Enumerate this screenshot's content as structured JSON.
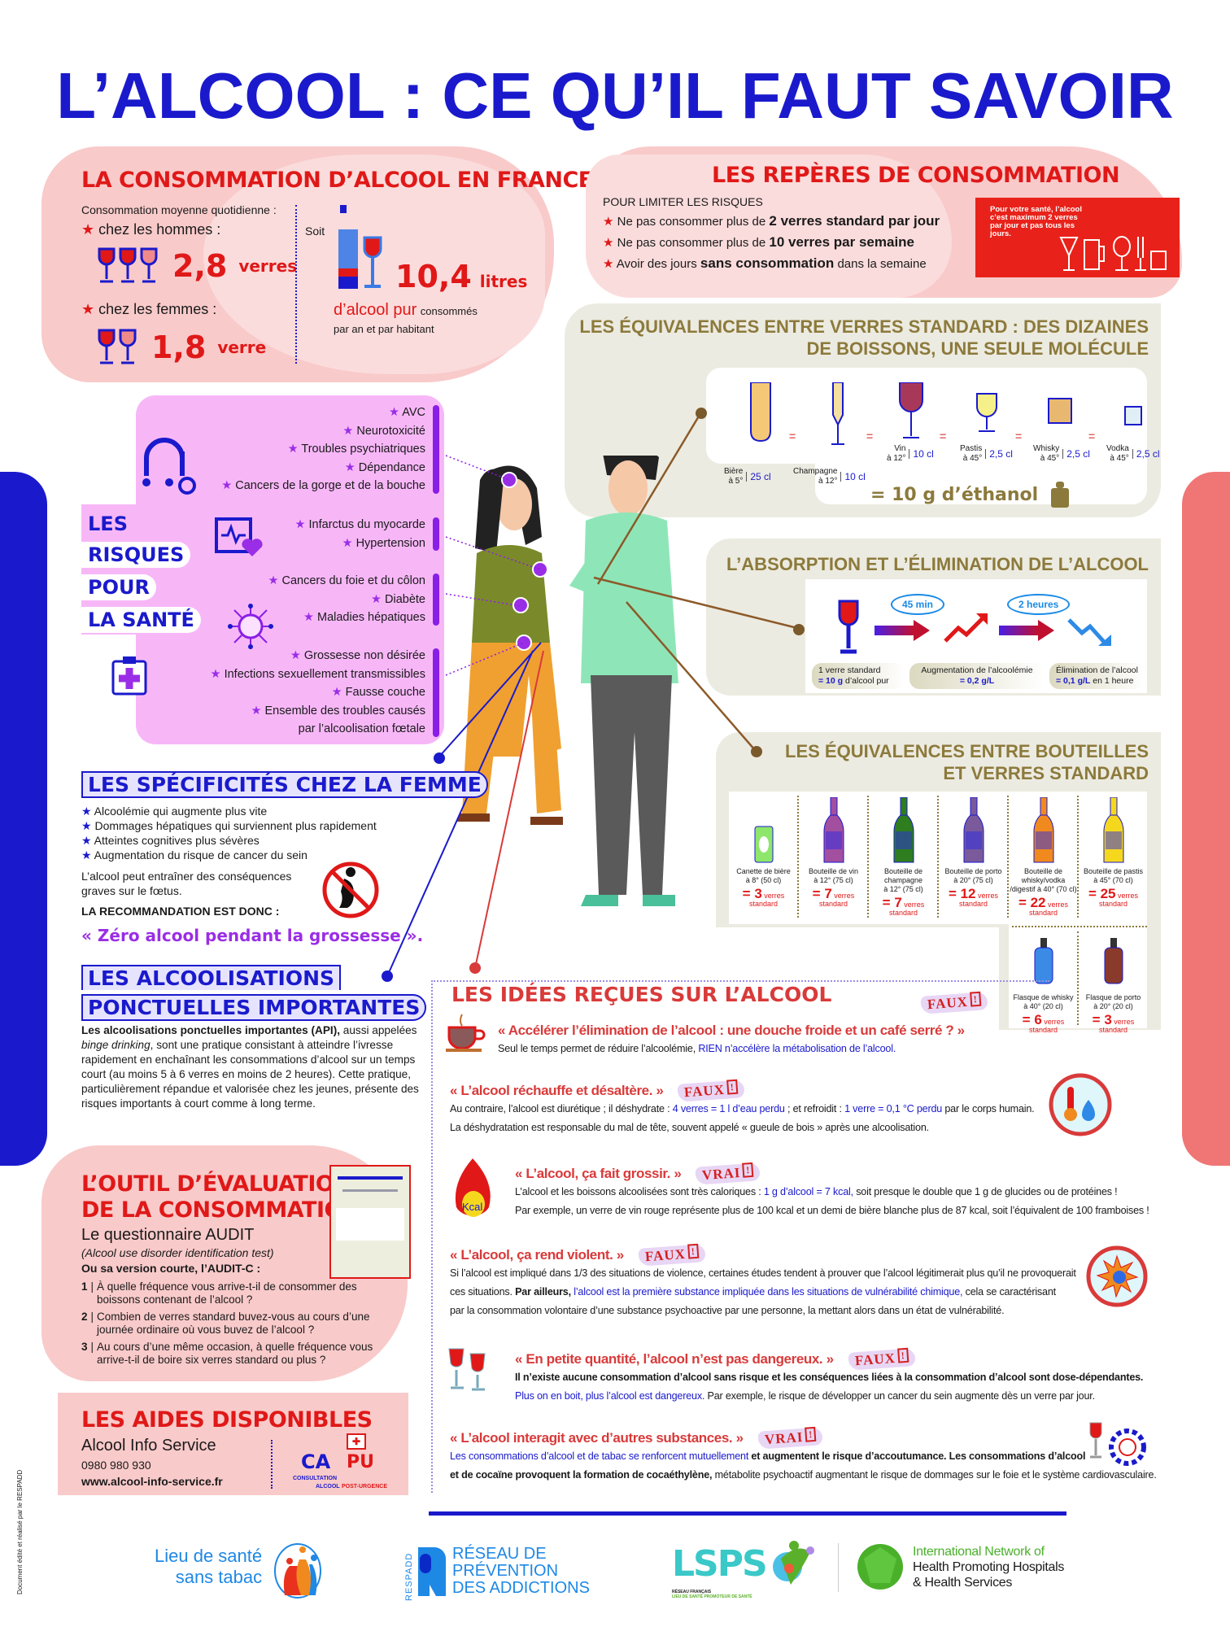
{
  "title": "L’ALCOOL : CE QU’IL FAUT SAVOIR",
  "consumption": {
    "title": "LA CONSOMMATION D’ALCOOL EN FRANCE",
    "subtitle": "Consommation moyenne quotidienne :",
    "men_label": "chez les hommes :",
    "men_value": "2,8",
    "men_unit": "verres",
    "women_label": "chez les femmes :",
    "women_value": "1,8",
    "women_unit": "verre",
    "soit": "Soit",
    "liters_value": "10,4",
    "liters_unit": "litres",
    "pure": "d’alcool pur",
    "consumed": "consommés",
    "per": "par an et par habitant"
  },
  "reperes": {
    "title": "LES REPÈRES DE CONSOMMATION",
    "subtitle": "POUR LIMITER LES RISQUES",
    "items": [
      {
        "pre": "Ne pas consommer plus de ",
        "bold": "2 verres standard par jour",
        "post": ""
      },
      {
        "pre": "Ne pas consommer plus de ",
        "bold": "10 verres par semaine",
        "post": ""
      },
      {
        "pre": "Avoir des jours ",
        "bold": "sans consommation",
        "post": " dans la semaine"
      }
    ],
    "badge": "Pour votre santé, l’alcool c’est maximum 2 verres par jour et pas tous les jours."
  },
  "equivalences": {
    "title_line1": "LES ÉQUIVALENCES ENTRE VERRES STANDARD : DES DIZAINES",
    "title_line2": "DE BOISSONS, UNE SEULE MOLÉCULE",
    "equals": "=",
    "glasses": [
      {
        "name": "Bière",
        "degree": "à 5°",
        "volume": "25 cl"
      },
      {
        "name": "Champagne",
        "degree": "à 12°",
        "volume": "10 cl"
      },
      {
        "name": "Vin",
        "degree": "à 12°",
        "volume": "10 cl"
      },
      {
        "name": "Pastis",
        "degree": "à 45°",
        "volume": "2,5 cl"
      },
      {
        "name": "Whisky",
        "degree": "à 45°",
        "volume": "2,5 cl"
      },
      {
        "name": "Vodka",
        "degree": "à 45°",
        "volume": "2,5 cl"
      }
    ],
    "result": "= 10 g d’éthanol"
  },
  "absorption": {
    "title": "L’ABSORPTION ET L’ÉLIMINATION DE L’ALCOOL",
    "durations": [
      "45 min",
      "2 heures"
    ],
    "labels": [
      {
        "line1": "1 verre standard",
        "bold": "= 10 g",
        "rest": " d’alcool pur"
      },
      {
        "line1": "Augmentation de l’alcoolémie",
        "bold": "= 0,2 g/L",
        "rest": ""
      },
      {
        "line1": "Élimination de l’alcool",
        "bold": "= 0,1 g/L",
        "rest": " en 1 heure"
      }
    ]
  },
  "bottles": {
    "title_line1": "LES ÉQUIVALENCES ENTRE BOUTEILLES",
    "title_line2": "ET VERRES STANDARD",
    "unit": "verres",
    "unit2": "standard",
    "items": [
      {
        "name1": "Canette de bière",
        "name2": "à 8° (50 cl)",
        "count": "= 3",
        "color": "#8ee66a"
      },
      {
        "name1": "Bouteille de vin",
        "name2": "à 12° (75 cl)",
        "count": "= 7",
        "color": "#a34fa0"
      },
      {
        "name1": "Bouteille de champagne",
        "name2": "à 12° (75 cl)",
        "count": "= 7",
        "color": "#2e7d1e"
      },
      {
        "name1": "Bouteille de porto",
        "name2": "à 20° (75 cl)",
        "count": "= 12",
        "color": "#7a5a9a"
      },
      {
        "name1": "Bouteille de whisky/vodka",
        "name2": "/digestif à 40° (70 cl)",
        "count": "= 22",
        "color": "#f08a1e"
      },
      {
        "name1": "Bouteille de pastis",
        "name2": "à 45° (70 cl)",
        "count": "= 25",
        "color": "#f5d81e"
      },
      {
        "name1": "Flasque de whisky",
        "name2": "à 40° (20 cl)",
        "count": "= 6",
        "color": "#3a8ae6"
      },
      {
        "name1": "Flasque de porto",
        "name2": "à 20° (20 cl)",
        "count": "= 3",
        "color": "#8a3a2a"
      }
    ]
  },
  "risks": {
    "label": [
      "LES",
      "RISQUES",
      "POUR",
      "LA SANTÉ"
    ],
    "groups": [
      [
        "AVC",
        "Neurotoxicité",
        "Troubles psychiatriques",
        "Dépendance",
        "Cancers de la gorge et de la bouche"
      ],
      [
        "Infarctus du myocarde",
        "Hypertension"
      ],
      [
        "Cancers du foie et du côlon",
        "Diabète",
        "Maladies hépatiques"
      ],
      [
        "Grossesse non désirée",
        "Infections sexuellement transmissibles",
        "Fausse couche",
        "Ensemble des troubles causés",
        "par l’alcoolisation fœtale"
      ]
    ]
  },
  "women": {
    "title": "LES SPÉCIFICITÉS CHEZ LA FEMME",
    "items": [
      "Alcoolémie qui augmente plus vite",
      "Dommages hépatiques qui surviennent plus rapidement",
      "Atteintes cognitives plus sévères",
      "Augmentation du risque de cancer du sein"
    ],
    "note": "L’alcool peut entraîner des conséquences graves sur le fœtus.",
    "rec_label": "LA RECOMMANDATION EST DONC :",
    "rec": "« Zéro alcool pendant la grossesse »."
  },
  "api": {
    "title_line1": "LES ALCOOLISATIONS",
    "title_line2": "PONCTUELLES IMPORTANTES",
    "bold": "Les alcoolisations ponctuelles importantes (API),",
    "t1": " aussi appelées ",
    "italic": "binge drinking",
    "t2": ", sont une pratique consistant à atteindre l’ivresse rapidement en enchaînant les consommations d’alcool sur un temps court (au moins 5 à 6 verres en moins de 2 heures). Cette pratique, particulièrement répandue et valorisée chez les jeunes, présente des risques importants à court comme à long terme."
  },
  "audit": {
    "title_line1": "L’OUTIL D’ÉVALUATION",
    "title_line2": "DE LA CONSOMMATION",
    "subtitle": "Le questionnaire AUDIT",
    "full": "(Alcool use disorder identification test)",
    "short": "Ou sa version courte, l’AUDIT-C :",
    "questions": [
      {
        "num": "1",
        "text": "À quelle fréquence vous arrive-t-il de consommer des boissons contenant de l’alcool ?"
      },
      {
        "num": "2",
        "text": "Combien de verres standard buvez-vous au cours d’une journée ordinaire où vous buvez de l’alcool ?"
      },
      {
        "num": "3",
        "text": "Au cours d’une même occasion, à quelle fréquence vous arrive-t-il de boire six verres standard ou plus ?"
      }
    ]
  },
  "aides": {
    "title": "LES AIDES DISPONIBLES",
    "service": "Alcool Info Service",
    "phone": "0980 980 930",
    "url": "www.alcool-info-service.fr",
    "capu": {
      "ca": "CA",
      "pu": "PU",
      "line1": "CONSULTATION",
      "line2a": "ALCOOL ",
      "line2b": "POST-URGENCE"
    }
  },
  "ideas": {
    "title": "LES IDÉES REÇUES SUR L’ALCOOL",
    "items": [
      {
        "quote": "« Accélérer l’élimination de l’alcool : une douche froide et un café serré ? »",
        "verdict": "FAUX",
        "lines": [
          [
            {
              "s": "n",
              "t": "Seul le temps permet de réduire l’alcoolémie, "
            },
            {
              "s": "blue",
              "t": "RIEN n’accélère la métabolisation de l’alcool."
            }
          ]
        ]
      },
      {
        "quote": "« L’alcool réchauffe et désaltère. »",
        "verdict": "FAUX",
        "lines": [
          [
            {
              "s": "n",
              "t": "Au contraire, l’alcool est diurétique ; il déshydrate : "
            },
            {
              "s": "blue",
              "t": "4 verres = 1 l d’eau perdu"
            },
            {
              "s": "n",
              "t": " ; et refroidit : "
            },
            {
              "s": "blue",
              "t": "1 verre = 0,1 °C perdu"
            },
            {
              "s": "n",
              "t": " par le corps humain."
            }
          ],
          [
            {
              "s": "n",
              "t": "La déshydratation est responsable du mal de tête, souvent appelé « gueule de bois » après une alcoolisation."
            }
          ]
        ]
      },
      {
        "quote": "« L’alcool, ça fait grossir. »",
        "verdict": "VRAI",
        "lines": [
          [
            {
              "s": "n",
              "t": "L’alcool et les boissons alcoolisées sont très caloriques : "
            },
            {
              "s": "blue",
              "t": "1 g d’alcool = 7 kcal,"
            },
            {
              "s": "n",
              "t": " soit presque le double que 1 g de glucides ou de protéines !"
            }
          ],
          [
            {
              "s": "n",
              "t": "Par exemple, un verre de vin rouge représente plus de 100 kcal et un demi de bière blanche plus de 87 kcal, soit l’équivalent de 100 framboises !"
            }
          ]
        ]
      },
      {
        "quote": "« L’alcool, ça rend violent. »",
        "verdict": "FAUX",
        "lines": [
          [
            {
              "s": "n",
              "t": "Si l’alcool est impliqué dans 1/3 des situations de violence, certaines études tendent à prouver que l’alcool légitimerait plus qu’il ne provoquerait"
            }
          ],
          [
            {
              "s": "n",
              "t": "ces situations. "
            },
            {
              "s": "b",
              "t": "Par ailleurs, "
            },
            {
              "s": "blue",
              "t": "l’alcool est la première substance impliquée dans les situations de vulnérabilité chimique,"
            },
            {
              "s": "n",
              "t": " cela se caractérisant"
            }
          ],
          [
            {
              "s": "n",
              "t": "par la consommation volontaire d’une substance psychoactive par une personne, la mettant alors dans un état de vulnérabilité."
            }
          ]
        ]
      },
      {
        "quote": "« En petite quantité, l’alcool n’est pas dangereux. »",
        "verdict": "FAUX",
        "lines": [
          [
            {
              "s": "b",
              "t": "Il n’existe aucune consommation d’alcool sans risque et les conséquences liées à la consommation d’alcool sont dose-dépendantes."
            }
          ],
          [
            {
              "s": "blue",
              "t": "Plus on en boit, plus l’alcool est dangereux."
            },
            {
              "s": "n",
              "t": " Par exemple, le risque de développer un cancer du sein augmente dès un verre par jour."
            }
          ]
        ]
      },
      {
        "quote": "« L’alcool interagit avec d’autres substances. »",
        "verdict": "VRAI",
        "lines": [
          [
            {
              "s": "blue",
              "t": "Les consommations d’alcool et de tabac se renforcent mutuellement"
            },
            {
              "s": "b",
              "t": " et augmentent le risque d’accoutumance. Les consommations d’alcool"
            }
          ],
          [
            {
              "s": "b",
              "t": "et de cocaïne provoquent la formation de cocaéthylène,"
            },
            {
              "s": "n",
              "t": " métabolite psychoactif augmentant le risque de dommages sur le foie et le système cardiovasculaire."
            }
          ]
        ]
      }
    ]
  },
  "footer": {
    "lsst_line1": "Lieu de santé",
    "lsst_line2": "sans tabac",
    "respadd_vertical": "RESPADD",
    "respadd_line1": "RÉSEAU DE",
    "respadd_line2": "PRÉVENTION",
    "respadd_line3": "DES ADDICTIONS",
    "lsps": "LSPS",
    "lsps_sub1": "RÉSEAU FRANÇAIS",
    "lsps_sub2": "LIEU DE SANTÉ PROMOTEUR DE SANTÉ",
    "hph_line1": "International Network of",
    "hph_line2": "Health Promoting Hospitals",
    "hph_line3": "& Health Services",
    "credit": "Document édité et réalisé par le RESPADD"
  },
  "colors": {
    "brand_blue": "#1a1acc",
    "red": "#e01818",
    "pink": "#f9caca",
    "olive": "#8c7a3c",
    "beige": "#ecebe1",
    "violet": "#f7b7f7"
  }
}
